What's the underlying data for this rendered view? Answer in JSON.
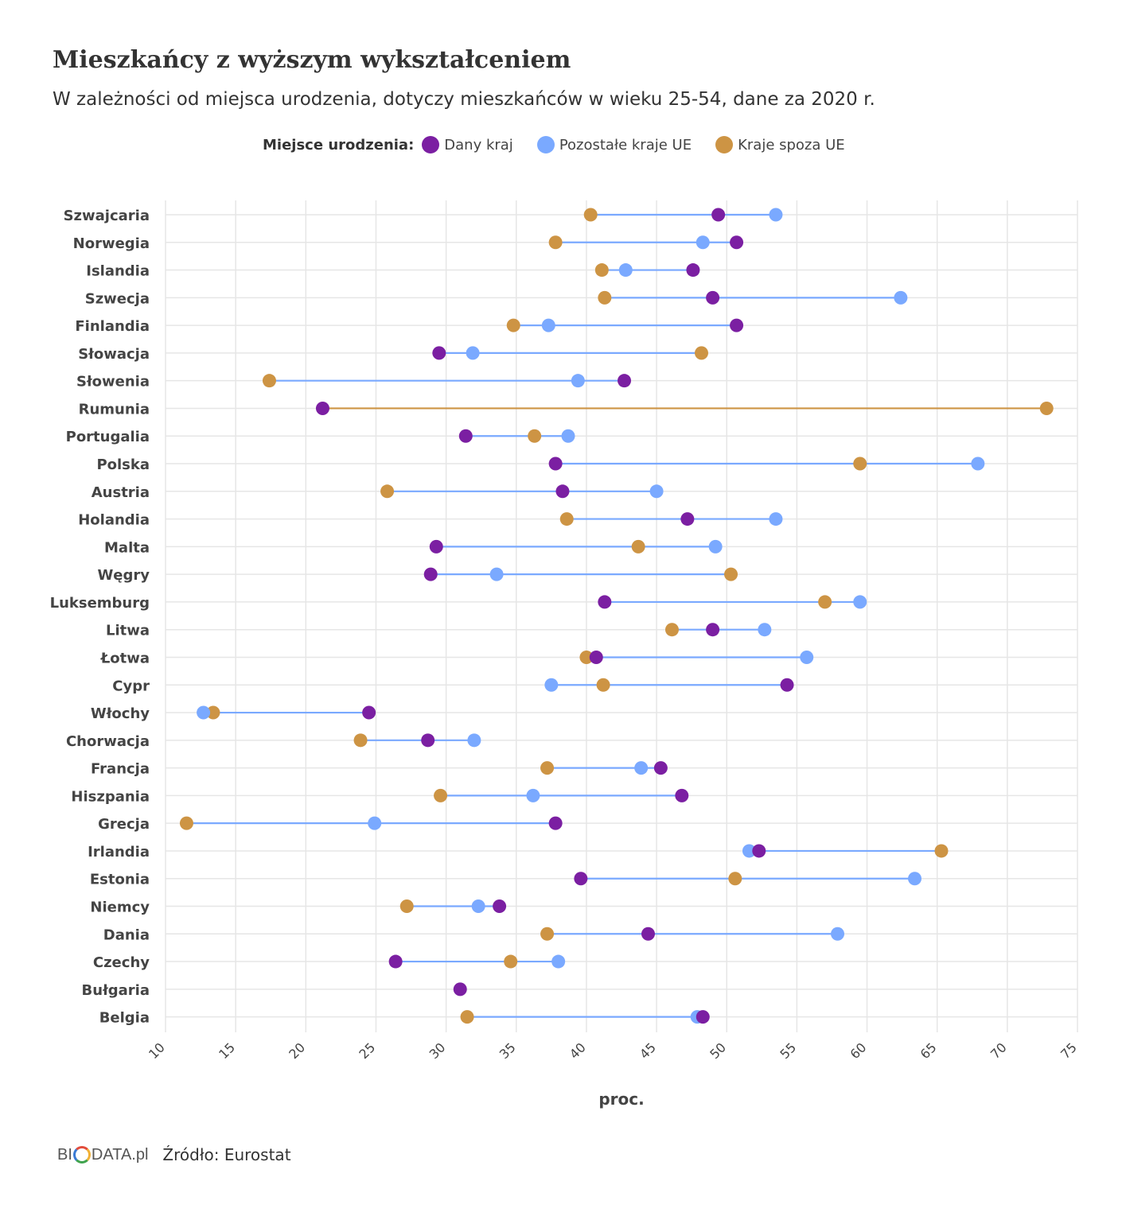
{
  "title": "Mieszkańcy z wyższym wykształceniem",
  "subtitle": "W zależności od miejsca urodzenia, dotyczy mieszkańców w wieku 25-54, dane za 2020 r.",
  "legend": {
    "title": "Miejsce urodzenia:",
    "items": [
      {
        "label": "Dany kraj",
        "color": "#7b1fa2"
      },
      {
        "label": "Pozostałe kraje UE",
        "color": "#7aa9ff"
      },
      {
        "label": "Kraje spoza UE",
        "color": "#cd9444"
      }
    ]
  },
  "footer": {
    "logo_left": "BI",
    "logo_right": "DATA.pl",
    "source": "Źródło: Eurostat"
  },
  "chart_data": {
    "type": "dumbbell",
    "xlabel": "proc.",
    "xlim": [
      10,
      75
    ],
    "xticks": [
      10,
      15,
      20,
      25,
      30,
      35,
      40,
      45,
      50,
      55,
      60,
      65,
      70,
      75
    ],
    "series_names": [
      "Dany kraj",
      "Pozostałe kraje UE",
      "Kraje spoza UE"
    ],
    "colors": {
      "home": "#7b1fa2",
      "eu": "#7aa9ff",
      "noneu": "#cd9444"
    },
    "rows": [
      {
        "country": "Szwajcaria",
        "home": 49.4,
        "eu": 53.5,
        "noneu": 40.3
      },
      {
        "country": "Norwegia",
        "home": 50.7,
        "eu": 48.3,
        "noneu": 37.8
      },
      {
        "country": "Islandia",
        "home": 47.6,
        "eu": 42.8,
        "noneu": 41.1
      },
      {
        "country": "Szwecja",
        "home": 49.0,
        "eu": 62.4,
        "noneu": 41.3
      },
      {
        "country": "Finlandia",
        "home": 50.7,
        "eu": 37.3,
        "noneu": 34.8
      },
      {
        "country": "Słowacja",
        "home": 29.5,
        "eu": 31.9,
        "noneu": 48.2
      },
      {
        "country": "Słowenia",
        "home": 42.7,
        "eu": 39.4,
        "noneu": 17.4
      },
      {
        "country": "Rumunia",
        "home": 21.2,
        "eu": null,
        "noneu": 72.8
      },
      {
        "country": "Portugalia",
        "home": 31.4,
        "eu": 38.7,
        "noneu": 36.3
      },
      {
        "country": "Polska",
        "home": 37.8,
        "eu": 67.9,
        "noneu": 59.5
      },
      {
        "country": "Austria",
        "home": 38.3,
        "eu": 45.0,
        "noneu": 25.8
      },
      {
        "country": "Holandia",
        "home": 47.2,
        "eu": 53.5,
        "noneu": 38.6
      },
      {
        "country": "Malta",
        "home": 29.3,
        "eu": 49.2,
        "noneu": 43.7
      },
      {
        "country": "Węgry",
        "home": 28.9,
        "eu": 33.6,
        "noneu": 50.3
      },
      {
        "country": "Luksemburg",
        "home": 41.3,
        "eu": 59.5,
        "noneu": 57.0
      },
      {
        "country": "Litwa",
        "home": 49.0,
        "eu": 52.7,
        "noneu": 46.1
      },
      {
        "country": "Łotwa",
        "home": 40.7,
        "eu": 55.7,
        "noneu": 40.0
      },
      {
        "country": "Cypr",
        "home": 54.3,
        "eu": 37.5,
        "noneu": 41.2
      },
      {
        "country": "Włochy",
        "home": 24.5,
        "eu": 12.7,
        "noneu": 13.4
      },
      {
        "country": "Chorwacja",
        "home": 28.7,
        "eu": 32.0,
        "noneu": 23.9
      },
      {
        "country": "Francja",
        "home": 45.3,
        "eu": 43.9,
        "noneu": 37.2
      },
      {
        "country": "Hiszpania",
        "home": 46.8,
        "eu": 36.2,
        "noneu": 29.6
      },
      {
        "country": "Grecja",
        "home": 37.8,
        "eu": 24.9,
        "noneu": 11.5
      },
      {
        "country": "Irlandia",
        "home": 52.3,
        "eu": 51.6,
        "noneu": 65.3
      },
      {
        "country": "Estonia",
        "home": 39.6,
        "eu": 63.4,
        "noneu": 50.6
      },
      {
        "country": "Niemcy",
        "home": 33.8,
        "eu": 32.3,
        "noneu": 27.2
      },
      {
        "country": "Dania",
        "home": 44.4,
        "eu": 57.9,
        "noneu": 37.2
      },
      {
        "country": "Czechy",
        "home": 26.4,
        "eu": 38.0,
        "noneu": 34.6
      },
      {
        "country": "Bułgaria",
        "home": 31.0,
        "eu": null,
        "noneu": null
      },
      {
        "country": "Belgia",
        "home": 48.3,
        "eu": 47.9,
        "noneu": 31.5
      }
    ]
  }
}
